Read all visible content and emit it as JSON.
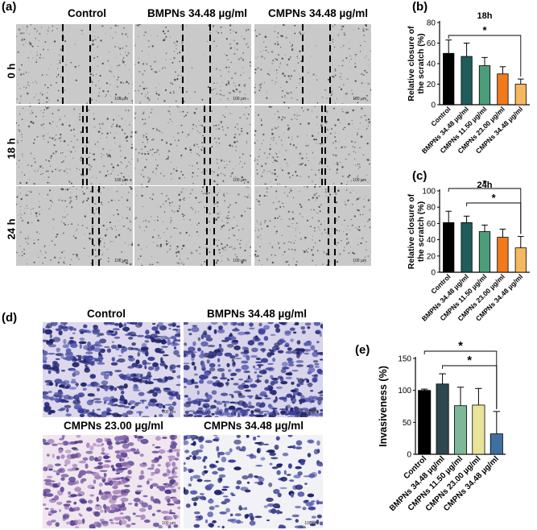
{
  "panel_a": {
    "label": "(a)",
    "columns": [
      "Control",
      "BMPNs 34.48 µg/ml",
      "CMPNs 34.48 µg/ml"
    ],
    "rows": [
      "0 h",
      "18 h",
      "24 h"
    ],
    "scale_text": "100 µm"
  },
  "panel_d": {
    "label": "(d)",
    "titles": [
      "Control",
      "BMPNs 34.48 µg/ml",
      "CMPNs 23.00 µg/ml",
      "CMPNs 34.48 µg/ml"
    ],
    "scale_text": "100 µm"
  },
  "colors": {
    "black": "#000000",
    "dark_teal": "#1f5c5a",
    "green": "#4d9c7a",
    "orange": "#f07a1d",
    "light_orange": "#f5b860",
    "dark_slate": "#2e4650",
    "sage": "#7fb79a",
    "pale_yellow": "#e8e49a",
    "steel_blue": "#3f6f9f"
  },
  "chart_data": [
    {
      "panel_label": "(b)",
      "type": "bar",
      "title": "18h",
      "ylabel": "Relative closure of\nthe scratch (%)",
      "ylim": [
        0,
        80
      ],
      "yticks": [
        0,
        20,
        40,
        60,
        80
      ],
      "categories": [
        "Control",
        "BMPNs 34.48 µg/ml",
        "CMPNs 11.50 µg/ml",
        "CMPNs 23.00 µg/ml",
        "CMPNs 34.48 µg/ml"
      ],
      "values": [
        50,
        47,
        38,
        30,
        20
      ],
      "errors": [
        13,
        13,
        8,
        7,
        5
      ],
      "colors": [
        "#000000",
        "#1f5c5a",
        "#4d9c7a",
        "#f07a1d",
        "#f5b860"
      ],
      "significance": [
        {
          "from": 0,
          "to": 4,
          "label": "*"
        }
      ]
    },
    {
      "panel_label": "(c)",
      "type": "bar",
      "title": "24h",
      "ylabel": "Relative closure of\nthe scratch (%)",
      "ylim": [
        0,
        100
      ],
      "yticks": [
        0,
        20,
        40,
        60,
        80,
        100
      ],
      "categories": [
        "Control",
        "BMPNs 34.48 µg/ml",
        "CMPNs 11.50 µg/ml",
        "CMPNs 23.00 µg/ml",
        "CMPNs 34.48 µg/ml"
      ],
      "values": [
        61,
        61,
        50,
        43,
        30
      ],
      "errors": [
        14,
        8,
        8,
        10,
        14
      ],
      "colors": [
        "#000000",
        "#1f5c5a",
        "#4d9c7a",
        "#f07a1d",
        "#f5b860"
      ],
      "significance": [
        {
          "from": 0,
          "to": 4,
          "label": "*"
        },
        {
          "from": 1,
          "to": 4,
          "label": "*"
        }
      ]
    },
    {
      "panel_label": "(e)",
      "type": "bar",
      "title": "",
      "ylabel": "Invasiveness (%)",
      "ylim": [
        0,
        150
      ],
      "yticks": [
        0,
        50,
        100,
        150
      ],
      "categories": [
        "Control",
        "BMPNs 34.48 µg/ml",
        "CMPNs 11.50 µg/ml",
        "CMPNs 23.00 µg/ml",
        "CMPNs 34.48 µg/ml"
      ],
      "values": [
        100,
        110,
        76,
        77,
        32
      ],
      "errors": [
        2,
        16,
        29,
        26,
        35
      ],
      "colors": [
        "#000000",
        "#2e4650",
        "#7fb79a",
        "#e8e49a",
        "#3f6f9f"
      ],
      "significance": [
        {
          "from": 0,
          "to": 4,
          "label": "*"
        },
        {
          "from": 1,
          "to": 4,
          "label": "*"
        }
      ]
    }
  ]
}
